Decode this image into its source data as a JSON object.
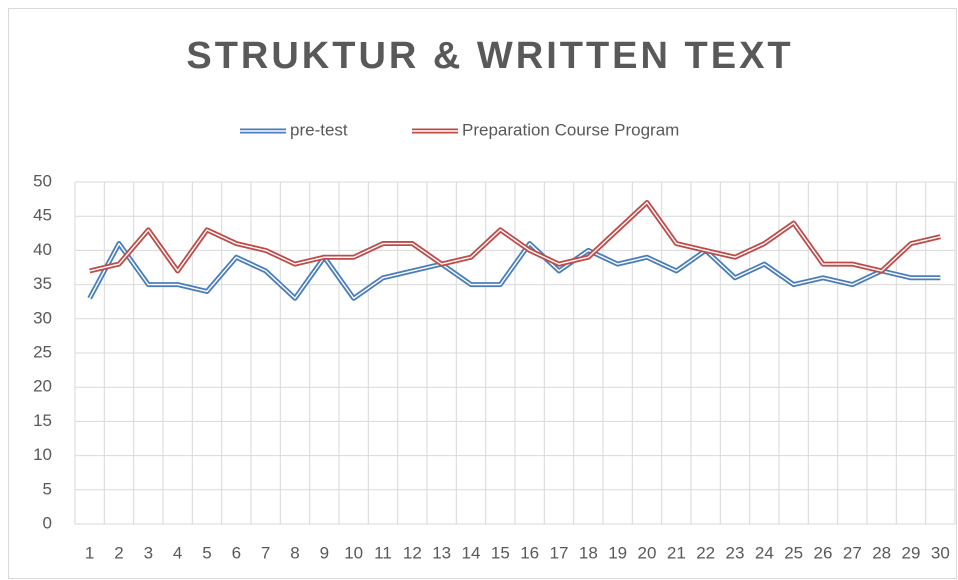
{
  "chart_data": {
    "type": "line",
    "title": "STRUKTUR & WRITTEN TEXT",
    "categories": [
      "1",
      "2",
      "3",
      "4",
      "5",
      "6",
      "7",
      "8",
      "9",
      "10",
      "11",
      "12",
      "13",
      "14",
      "15",
      "16",
      "17",
      "18",
      "19",
      "20",
      "21",
      "22",
      "23",
      "24",
      "25",
      "26",
      "27",
      "28",
      "29",
      "30"
    ],
    "series": [
      {
        "name": "pre-test",
        "color": "#4a7ebb",
        "values": [
          33,
          41,
          35,
          35,
          34,
          39,
          37,
          33,
          39,
          33,
          36,
          37,
          38,
          35,
          35,
          41,
          37,
          40,
          38,
          39,
          37,
          40,
          36,
          38,
          35,
          36,
          35,
          37,
          36,
          36
        ]
      },
      {
        "name": "Preparation Course Program",
        "color": "#be4b48",
        "values": [
          37,
          38,
          43,
          37,
          43,
          41,
          40,
          38,
          39,
          39,
          41,
          41,
          38,
          39,
          43,
          40,
          38,
          39,
          43,
          47,
          41,
          40,
          39,
          41,
          44,
          38,
          38,
          37,
          41,
          42
        ]
      }
    ],
    "ylim": [
      0,
      50
    ],
    "yticks": [
      0,
      5,
      10,
      15,
      20,
      25,
      30,
      35,
      40,
      45,
      50
    ],
    "grid": true,
    "xgrid": true,
    "legend": "top"
  }
}
